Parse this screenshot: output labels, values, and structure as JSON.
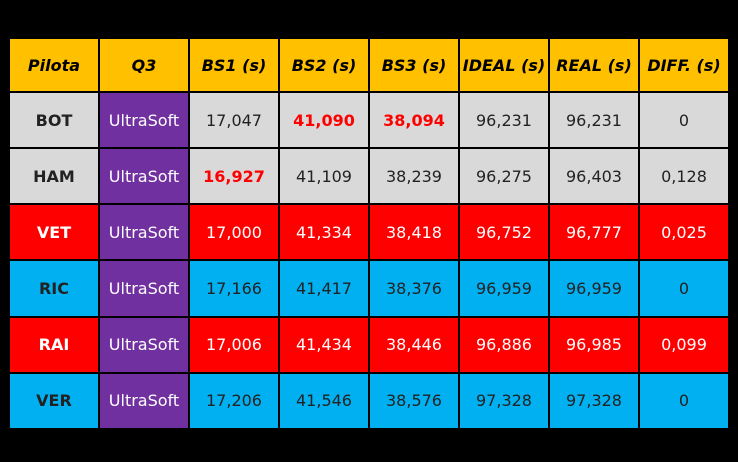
{
  "headers": [
    "Pilota",
    "Q3",
    "BS1 (s)",
    "BS2 (s)",
    "BS3 (s)",
    "IDEAL (s)",
    "REAL (s)",
    "DIFF. (s)"
  ],
  "rows": [
    {
      "color": "grey",
      "cells": [
        "BOT",
        "UltraSoft",
        "17,047",
        "41,090",
        "38,094",
        "96,231",
        "96,231",
        "0"
      ],
      "best": [
        3,
        4
      ]
    },
    {
      "color": "grey",
      "cells": [
        "HAM",
        "UltraSoft",
        "16,927",
        "41,109",
        "38,239",
        "96,275",
        "96,403",
        "0,128"
      ],
      "best": [
        2
      ]
    },
    {
      "color": "red",
      "cells": [
        "VET",
        "UltraSoft",
        "17,000",
        "41,334",
        "38,418",
        "96,752",
        "96,777",
        "0,025"
      ],
      "best": []
    },
    {
      "color": "blue",
      "cells": [
        "RIC",
        "UltraSoft",
        "17,166",
        "41,417",
        "38,376",
        "96,959",
        "96,959",
        "0"
      ],
      "best": []
    },
    {
      "color": "red",
      "cells": [
        "RAI",
        "UltraSoft",
        "17,006",
        "41,434",
        "38,446",
        "96,886",
        "96,985",
        "0,099"
      ],
      "best": []
    },
    {
      "color": "blue",
      "cells": [
        "VER",
        "UltraSoft",
        "17,206",
        "41,546",
        "38,576",
        "97,328",
        "97,328",
        "0"
      ],
      "best": []
    }
  ],
  "colors": {
    "header": "#ffc000",
    "tyre": "#7030a0",
    "grey": "#d9d9d9",
    "red": "#ff0000",
    "blue": "#00b0f0",
    "best": "#ff0000"
  }
}
